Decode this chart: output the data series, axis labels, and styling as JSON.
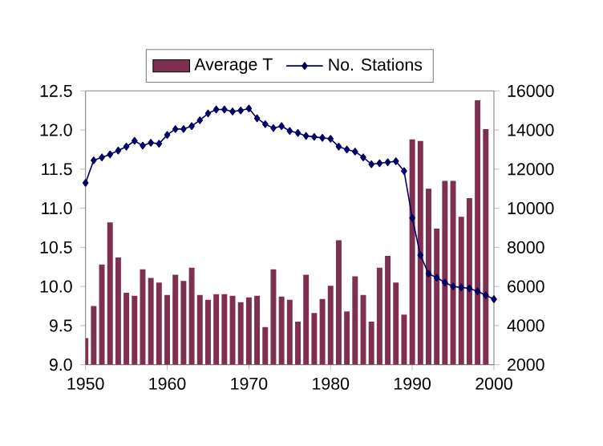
{
  "chart_data": {
    "type": "bar",
    "xlim": [
      1950,
      2000
    ],
    "xticks": [
      1950,
      1960,
      1970,
      1980,
      1990,
      2000
    ],
    "ylim": [
      9,
      12.5
    ],
    "yticks": [
      {
        "value": 9,
        "label": "9.0"
      },
      {
        "value": 9.5,
        "label": "9.5"
      },
      {
        "value": 10,
        "label": "10.0"
      },
      {
        "value": 10.5,
        "label": "10.5"
      },
      {
        "value": 11,
        "label": "11.0"
      },
      {
        "value": 11.5,
        "label": "11.5"
      },
      {
        "value": 12,
        "label": "12.0"
      },
      {
        "value": 12.5,
        "label": "12.5"
      }
    ],
    "y2lim": [
      2000,
      16000
    ],
    "y2ticks": [
      2000,
      4000,
      6000,
      8000,
      10000,
      12000,
      14000,
      16000
    ],
    "legend": "top",
    "series": [
      {
        "name": "Average T",
        "color": "#7f2f4f",
        "x": [
          1950,
          1951,
          1952,
          1953,
          1954,
          1955,
          1956,
          1957,
          1958,
          1959,
          1960,
          1961,
          1962,
          1963,
          1964,
          1965,
          1966,
          1967,
          1968,
          1969,
          1970,
          1971,
          1972,
          1973,
          1974,
          1975,
          1976,
          1977,
          1978,
          1979,
          1980,
          1981,
          1982,
          1983,
          1984,
          1985,
          1986,
          1987,
          1988,
          1989,
          1990,
          1991,
          1992,
          1993,
          1994,
          1995,
          1996,
          1997,
          1998,
          1999
        ],
        "values": [
          9.34,
          9.75,
          10.28,
          10.82,
          10.37,
          9.92,
          9.88,
          10.22,
          10.11,
          10.05,
          9.89,
          10.15,
          10.07,
          10.24,
          9.89,
          9.83,
          9.9,
          9.9,
          9.88,
          9.8,
          9.86,
          9.88,
          9.48,
          10.22,
          9.87,
          9.83,
          9.55,
          10.15,
          9.66,
          9.84,
          10.01,
          10.59,
          9.68,
          10.13,
          9.89,
          9.55,
          10.24,
          10.39,
          10.05,
          9.64,
          11.88,
          11.86,
          11.25,
          10.74,
          11.35,
          11.35,
          10.89,
          11.13,
          12.38,
          12.01
        ]
      },
      {
        "name": "No. Stations",
        "type": "line",
        "axis": "y2",
        "marker": "diamond",
        "color": "#000066",
        "x": [
          1950,
          1951,
          1952,
          1953,
          1954,
          1955,
          1956,
          1957,
          1958,
          1959,
          1960,
          1961,
          1962,
          1963,
          1964,
          1965,
          1966,
          1967,
          1968,
          1969,
          1970,
          1971,
          1972,
          1973,
          1974,
          1975,
          1976,
          1977,
          1978,
          1979,
          1980,
          1981,
          1982,
          1983,
          1984,
          1985,
          1986,
          1987,
          1988,
          1989,
          1990,
          1991,
          1992,
          1993,
          1994,
          1995,
          1996,
          1997,
          1998,
          1999,
          2000
        ],
        "values": [
          11300,
          12450,
          12600,
          12750,
          12950,
          13150,
          13450,
          13200,
          13350,
          13300,
          13750,
          14050,
          14050,
          14200,
          14500,
          14850,
          15050,
          15050,
          14950,
          15000,
          15100,
          14600,
          14300,
          14100,
          14200,
          13950,
          13850,
          13700,
          13650,
          13600,
          13550,
          13150,
          13000,
          12900,
          12600,
          12250,
          12300,
          12350,
          12400,
          11900,
          9500,
          7600,
          6650,
          6450,
          6200,
          6000,
          5950,
          5900,
          5750,
          5550,
          5350
        ]
      }
    ]
  }
}
